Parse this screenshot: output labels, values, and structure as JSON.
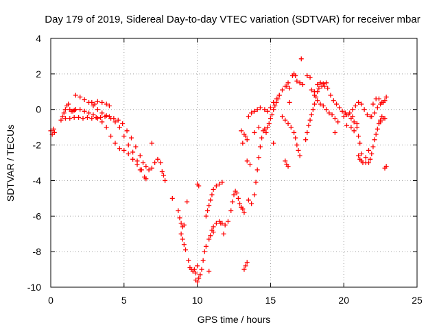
{
  "chart_data": {
    "type": "scatter",
    "title": "Day 179 of 2019, Sidereal Day-to-day VTEC variation (SDTVAR) for receiver mbar",
    "xlabel": "GPS time / hours",
    "ylabel": "SDTVAR / TECUs",
    "xlim": [
      0,
      25
    ],
    "ylim": [
      -10,
      4
    ],
    "xticks": [
      "0",
      "5",
      "10",
      "15",
      "20",
      "25"
    ],
    "yticks": [
      "4",
      "2",
      "0",
      "-2",
      "-4",
      "-6",
      "-8",
      "-10"
    ],
    "grid": true,
    "marker": "plus",
    "color": "#ff0000",
    "series": [
      {
        "name": "",
        "points": [
          [
            0.0,
            -1.2
          ],
          [
            0.1,
            -1.4
          ],
          [
            0.2,
            -1.1
          ],
          [
            0.25,
            -1.3
          ],
          [
            0.7,
            -0.6
          ],
          [
            0.8,
            -0.4
          ],
          [
            0.9,
            -0.2
          ],
          [
            1.0,
            0.0
          ],
          [
            1.1,
            0.2
          ],
          [
            1.2,
            0.3
          ],
          [
            1.3,
            0.0
          ],
          [
            1.4,
            -0.1
          ],
          [
            1.5,
            -0.1
          ],
          [
            1.6,
            -0.05
          ],
          [
            1.7,
            0.0
          ],
          [
            1.0,
            -0.5
          ],
          [
            1.3,
            -0.5
          ],
          [
            1.6,
            -0.45
          ],
          [
            1.9,
            -0.45
          ],
          [
            2.2,
            -0.5
          ],
          [
            2.5,
            -0.45
          ],
          [
            2.8,
            -0.5
          ],
          [
            3.1,
            -0.45
          ],
          [
            3.4,
            -0.45
          ],
          [
            3.7,
            -0.4
          ],
          [
            4.0,
            -0.4
          ],
          [
            4.3,
            -0.5
          ],
          [
            4.6,
            -0.6
          ],
          [
            4.9,
            -0.8
          ],
          [
            5.2,
            -1.2
          ],
          [
            5.5,
            -1.6
          ],
          [
            5.8,
            -2.1
          ],
          [
            6.1,
            -2.6
          ],
          [
            6.3,
            -3.0
          ],
          [
            6.5,
            -3.2
          ],
          [
            6.7,
            -3.4
          ],
          [
            6.9,
            -3.3
          ],
          [
            7.1,
            -3.0
          ],
          [
            7.3,
            -2.8
          ],
          [
            7.5,
            -3.0
          ],
          [
            7.6,
            -3.5
          ],
          [
            7.7,
            -3.7
          ],
          [
            7.8,
            -4.0
          ],
          [
            1.7,
            0.8
          ],
          [
            2.0,
            0.7
          ],
          [
            2.3,
            0.55
          ],
          [
            2.6,
            0.4
          ],
          [
            2.9,
            0.2
          ],
          [
            3.2,
            0.0
          ],
          [
            3.5,
            -0.2
          ],
          [
            3.8,
            -0.35
          ],
          [
            4.1,
            -0.5
          ],
          [
            4.4,
            -0.7
          ],
          [
            4.7,
            -1.0
          ],
          [
            5.0,
            -1.5
          ],
          [
            5.3,
            -2.0
          ],
          [
            5.6,
            -2.4
          ],
          [
            5.9,
            -2.9
          ],
          [
            6.2,
            -3.4
          ],
          [
            6.4,
            -3.8
          ],
          [
            6.5,
            -3.9
          ],
          [
            1.7,
            0.0
          ],
          [
            2.0,
            0.0
          ],
          [
            2.3,
            -0.1
          ],
          [
            2.6,
            -0.2
          ],
          [
            2.9,
            -0.3
          ],
          [
            3.2,
            -0.5
          ],
          [
            3.5,
            -0.7
          ],
          [
            3.8,
            -1.0
          ],
          [
            4.1,
            -1.5
          ],
          [
            4.4,
            -1.9
          ],
          [
            4.7,
            -2.2
          ],
          [
            5.0,
            -2.3
          ],
          [
            5.3,
            -2.5
          ],
          [
            5.6,
            -2.8
          ],
          [
            5.9,
            -3.1
          ],
          [
            6.1,
            -3.4
          ],
          [
            2.8,
            0.4
          ],
          [
            3.0,
            0.3
          ],
          [
            3.2,
            0.45
          ],
          [
            3.5,
            0.4
          ],
          [
            3.8,
            0.3
          ],
          [
            4.0,
            0.2
          ],
          [
            6.9,
            -1.9
          ],
          [
            8.3,
            -5.0
          ],
          [
            9.3,
            -5.2
          ],
          [
            8.7,
            -5.7
          ],
          [
            8.8,
            -6.1
          ],
          [
            8.9,
            -6.4
          ],
          [
            9.0,
            -6.6
          ],
          [
            9.1,
            -6.5
          ],
          [
            8.9,
            -7.0
          ],
          [
            9.0,
            -7.3
          ],
          [
            9.1,
            -7.6
          ],
          [
            9.2,
            -7.9
          ],
          [
            9.4,
            -8.5
          ],
          [
            9.5,
            -8.9
          ],
          [
            9.6,
            -9.0
          ],
          [
            9.7,
            -9.1
          ],
          [
            9.8,
            -9.0
          ],
          [
            9.9,
            -9.2
          ],
          [
            10.0,
            -8.8
          ],
          [
            9.9,
            -9.6
          ],
          [
            10.0,
            -9.7
          ],
          [
            10.1,
            -9.5
          ],
          [
            10.2,
            -9.3
          ],
          [
            10.3,
            -9.0
          ],
          [
            10.4,
            -8.5
          ],
          [
            10.5,
            -8.0
          ],
          [
            10.6,
            -7.7
          ],
          [
            10.8,
            -7.3
          ],
          [
            10.9,
            -7.1
          ],
          [
            11.0,
            -6.8
          ],
          [
            11.1,
            -6.6
          ],
          [
            11.3,
            -6.4
          ],
          [
            11.5,
            -6.3
          ],
          [
            11.7,
            -6.4
          ],
          [
            11.9,
            -6.5
          ],
          [
            12.1,
            -6.3
          ],
          [
            12.3,
            -5.7
          ],
          [
            12.4,
            -5.2
          ],
          [
            12.5,
            -4.8
          ],
          [
            12.6,
            -4.6
          ],
          [
            12.7,
            -4.7
          ],
          [
            12.8,
            -5.0
          ],
          [
            12.9,
            -5.3
          ],
          [
            13.0,
            -5.5
          ],
          [
            13.1,
            -5.6
          ],
          [
            13.2,
            -5.8
          ],
          [
            10.8,
            -9.1
          ],
          [
            10.0,
            -4.2
          ],
          [
            10.1,
            -4.3
          ],
          [
            10.6,
            -6.0
          ],
          [
            10.7,
            -5.7
          ],
          [
            10.8,
            -5.4
          ],
          [
            10.9,
            -5.1
          ],
          [
            11.0,
            -4.8
          ],
          [
            11.1,
            -4.5
          ],
          [
            11.3,
            -4.3
          ],
          [
            11.5,
            -4.2
          ],
          [
            11.7,
            -4.1
          ],
          [
            11.1,
            -6.9
          ],
          [
            11.6,
            -6.4
          ],
          [
            11.8,
            -7.0
          ],
          [
            13.2,
            -9.0
          ],
          [
            13.3,
            -8.8
          ],
          [
            13.4,
            -8.6
          ],
          [
            13.0,
            -1.2
          ],
          [
            13.2,
            -1.4
          ],
          [
            13.3,
            -1.5
          ],
          [
            13.1,
            -1.9
          ],
          [
            13.4,
            -1.7
          ],
          [
            13.5,
            -0.4
          ],
          [
            13.7,
            -0.2
          ],
          [
            13.9,
            -0.1
          ],
          [
            14.1,
            0.0
          ],
          [
            14.3,
            0.1
          ],
          [
            14.6,
            0.0
          ],
          [
            14.8,
            -0.1
          ],
          [
            15.0,
            0.1
          ],
          [
            15.2,
            0.4
          ],
          [
            15.4,
            0.6
          ],
          [
            15.6,
            0.8
          ],
          [
            15.8,
            1.1
          ],
          [
            16.0,
            1.3
          ],
          [
            16.1,
            1.3
          ],
          [
            16.2,
            1.5
          ],
          [
            16.3,
            1.2
          ],
          [
            16.5,
            1.9
          ],
          [
            16.6,
            2.0
          ],
          [
            16.7,
            1.9
          ],
          [
            16.8,
            1.6
          ],
          [
            17.0,
            1.5
          ],
          [
            17.2,
            1.4
          ],
          [
            17.1,
            2.85
          ],
          [
            13.4,
            -2.9
          ],
          [
            13.6,
            -3.1
          ],
          [
            13.5,
            -5.1
          ],
          [
            13.7,
            -5.3
          ],
          [
            13.9,
            -4.8
          ],
          [
            14.0,
            -4.1
          ],
          [
            14.1,
            -3.4
          ],
          [
            14.2,
            -2.7
          ],
          [
            14.3,
            -2.1
          ],
          [
            14.4,
            -1.6
          ],
          [
            14.5,
            -1.2
          ],
          [
            14.6,
            -1.1
          ],
          [
            14.7,
            -1.3
          ],
          [
            14.8,
            -1.0
          ],
          [
            14.9,
            -0.8
          ],
          [
            15.0,
            -0.5
          ],
          [
            15.1,
            -0.3
          ],
          [
            15.2,
            0.0
          ],
          [
            15.3,
            0.2
          ],
          [
            15.4,
            0.4
          ],
          [
            15.5,
            0.6
          ],
          [
            15.6,
            0.8
          ],
          [
            13.9,
            -1.3
          ],
          [
            14.2,
            -1.0
          ],
          [
            15.2,
            -1.9
          ],
          [
            15.8,
            -0.4
          ],
          [
            16.0,
            -0.6
          ],
          [
            16.2,
            -0.8
          ],
          [
            16.4,
            -1.0
          ],
          [
            16.6,
            -1.3
          ],
          [
            16.7,
            -1.6
          ],
          [
            16.8,
            -2.0
          ],
          [
            16.9,
            -2.3
          ],
          [
            17.0,
            -2.6
          ],
          [
            16.3,
            0.4
          ],
          [
            16.0,
            -2.9
          ],
          [
            16.1,
            -3.1
          ],
          [
            16.2,
            -3.2
          ],
          [
            17.4,
            -1.7
          ],
          [
            17.5,
            -1.3
          ],
          [
            17.6,
            -0.9
          ],
          [
            17.7,
            -0.6
          ],
          [
            17.8,
            -0.3
          ],
          [
            17.9,
            0.0
          ],
          [
            18.0,
            0.3
          ],
          [
            18.1,
            0.7
          ],
          [
            18.2,
            1.0
          ],
          [
            18.3,
            1.2
          ],
          [
            18.5,
            1.3
          ],
          [
            18.7,
            1.3
          ],
          [
            18.9,
            1.2
          ],
          [
            19.1,
            0.8
          ],
          [
            19.3,
            0.5
          ],
          [
            19.5,
            0.3
          ],
          [
            19.7,
            0.1
          ],
          [
            19.9,
            -0.1
          ],
          [
            20.1,
            -0.2
          ],
          [
            20.3,
            -0.3
          ],
          [
            20.5,
            -0.5
          ],
          [
            20.7,
            -0.7
          ],
          [
            20.9,
            -0.8
          ],
          [
            17.5,
            1.9
          ],
          [
            17.7,
            1.8
          ],
          [
            17.8,
            1.1
          ],
          [
            18.0,
            1.0
          ],
          [
            18.2,
            1.4
          ],
          [
            18.4,
            1.5
          ],
          [
            18.6,
            1.45
          ],
          [
            18.8,
            1.5
          ],
          [
            18.0,
            0.8
          ],
          [
            18.2,
            0.5
          ],
          [
            18.4,
            0.3
          ],
          [
            18.6,
            0.2
          ],
          [
            18.8,
            0.0
          ],
          [
            19.0,
            -0.2
          ],
          [
            19.2,
            -0.3
          ],
          [
            19.4,
            -0.5
          ],
          [
            19.6,
            -0.7
          ],
          [
            20.0,
            -0.4
          ],
          [
            20.2,
            -0.3
          ],
          [
            20.4,
            -0.2
          ],
          [
            20.6,
            0.0
          ],
          [
            20.8,
            0.2
          ],
          [
            21.0,
            0.4
          ],
          [
            21.2,
            0.3
          ],
          [
            21.4,
            0.0
          ],
          [
            21.6,
            -0.3
          ],
          [
            21.8,
            -0.4
          ],
          [
            22.0,
            0.3
          ],
          [
            22.2,
            0.6
          ],
          [
            22.4,
            0.6
          ],
          [
            22.6,
            0.4
          ],
          [
            22.8,
            0.5
          ],
          [
            22.9,
            0.7
          ],
          [
            19.4,
            -1.3
          ],
          [
            20.2,
            -0.9
          ],
          [
            20.5,
            -1.0
          ],
          [
            20.7,
            -1.2
          ],
          [
            20.9,
            -1.0
          ],
          [
            21.0,
            -1.5
          ],
          [
            21.1,
            -1.9
          ],
          [
            20.6,
            -0.4
          ],
          [
            21.0,
            -2.6
          ],
          [
            21.1,
            -2.8
          ],
          [
            21.2,
            -2.9
          ],
          [
            21.3,
            -3.0
          ],
          [
            21.5,
            -3.0
          ],
          [
            21.7,
            -3.0
          ],
          [
            21.8,
            -2.8
          ],
          [
            21.9,
            -2.5
          ],
          [
            22.0,
            -2.1
          ],
          [
            22.1,
            -1.7
          ],
          [
            22.2,
            -1.4
          ],
          [
            22.3,
            -1.1
          ],
          [
            22.4,
            -0.8
          ],
          [
            22.5,
            -0.6
          ],
          [
            22.6,
            -0.4
          ],
          [
            22.7,
            -0.5
          ],
          [
            21.2,
            -2.5
          ],
          [
            21.5,
            -2.7
          ],
          [
            21.7,
            -2.3
          ],
          [
            21.9,
            -0.4
          ],
          [
            22.1,
            -0.2
          ],
          [
            22.3,
            0.1
          ],
          [
            22.5,
            0.3
          ],
          [
            22.7,
            0.4
          ],
          [
            22.8,
            -3.3
          ],
          [
            22.9,
            -3.2
          ],
          [
            22.5,
            -0.7
          ],
          [
            22.8,
            -0.5
          ]
        ]
      }
    ]
  }
}
